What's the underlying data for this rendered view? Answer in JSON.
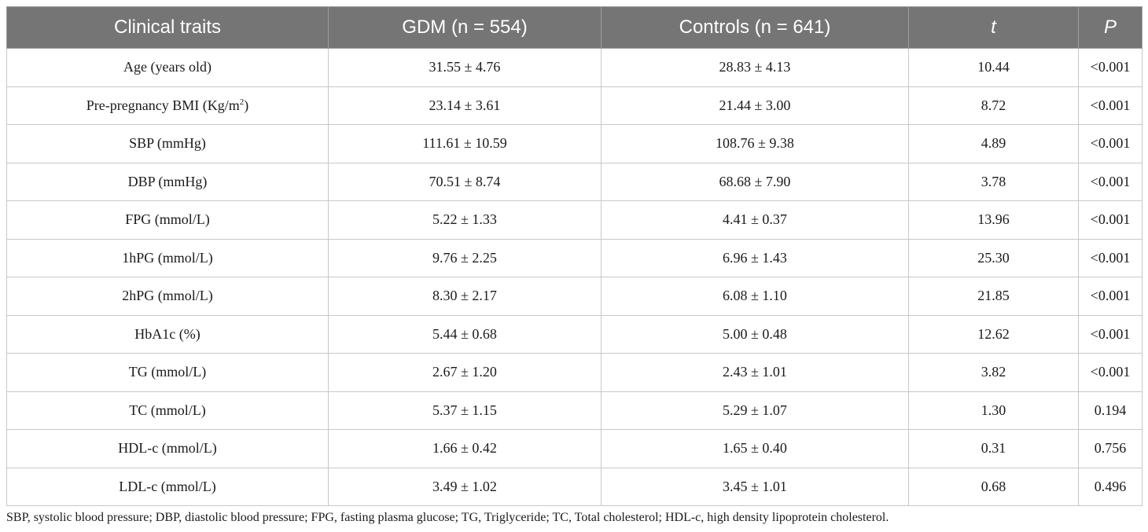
{
  "table": {
    "headers": [
      "Clinical traits",
      "GDM (n = 554)",
      "Controls (n = 641)",
      "t",
      "P"
    ],
    "rows": [
      {
        "trait": "Age (years old)",
        "trait_sup": "",
        "trait_suffix": "",
        "gdm": "31.55 ± 4.76",
        "controls": "28.83 ± 4.13",
        "t": "10.44",
        "p": "<0.001"
      },
      {
        "trait": "Pre-pregnancy BMI (Kg/m",
        "trait_sup": "2",
        "trait_suffix": ")",
        "gdm": "23.14 ± 3.61",
        "controls": "21.44 ± 3.00",
        "t": "8.72",
        "p": "<0.001"
      },
      {
        "trait": "SBP (mmHg)",
        "trait_sup": "",
        "trait_suffix": "",
        "gdm": "111.61 ± 10.59",
        "controls": "108.76 ± 9.38",
        "t": "4.89",
        "p": "<0.001"
      },
      {
        "trait": "DBP (mmHg)",
        "trait_sup": "",
        "trait_suffix": "",
        "gdm": "70.51 ± 8.74",
        "controls": "68.68 ± 7.90",
        "t": "3.78",
        "p": "<0.001"
      },
      {
        "trait": "FPG (mmol/L)",
        "trait_sup": "",
        "trait_suffix": "",
        "gdm": "5.22 ± 1.33",
        "controls": "4.41 ± 0.37",
        "t": "13.96",
        "p": "<0.001"
      },
      {
        "trait": "1hPG (mmol/L)",
        "trait_sup": "",
        "trait_suffix": "",
        "gdm": "9.76 ± 2.25",
        "controls": "6.96 ± 1.43",
        "t": "25.30",
        "p": "<0.001"
      },
      {
        "trait": "2hPG (mmol/L)",
        "trait_sup": "",
        "trait_suffix": "",
        "gdm": "8.30 ± 2.17",
        "controls": "6.08 ± 1.10",
        "t": "21.85",
        "p": "<0.001"
      },
      {
        "trait": "HbA1c (%)",
        "trait_sup": "",
        "trait_suffix": "",
        "gdm": "5.44 ± 0.68",
        "controls": "5.00 ± 0.48",
        "t": "12.62",
        "p": "<0.001"
      },
      {
        "trait": "TG (mmol/L)",
        "trait_sup": "",
        "trait_suffix": "",
        "gdm": "2.67 ± 1.20",
        "controls": "2.43 ± 1.01",
        "t": "3.82",
        "p": "<0.001"
      },
      {
        "trait": "TC (mmol/L)",
        "trait_sup": "",
        "trait_suffix": "",
        "gdm": "5.37 ± 1.15",
        "controls": "5.29 ± 1.07",
        "t": "1.30",
        "p": "0.194"
      },
      {
        "trait": "HDL-c (mmol/L)",
        "trait_sup": "",
        "trait_suffix": "",
        "gdm": "1.66 ± 0.42",
        "controls": "1.65 ± 0.40",
        "t": "0.31",
        "p": "0.756"
      },
      {
        "trait": "LDL-c (mmol/L)",
        "trait_sup": "",
        "trait_suffix": "",
        "gdm": "3.49 ± 1.02",
        "controls": "3.45 ± 1.01",
        "t": "0.68",
        "p": "0.496"
      }
    ]
  },
  "footnote": "SBP, systolic blood pressure; DBP, diastolic blood pressure; FPG, fasting plasma glucose; TG, Triglyceride; TC, Total cholesterol; HDL-c, high density lipoprotein cholesterol.",
  "colors": {
    "header_bg": "#757575",
    "header_text": "#ffffff",
    "grid_line": "#c8c8c8"
  }
}
